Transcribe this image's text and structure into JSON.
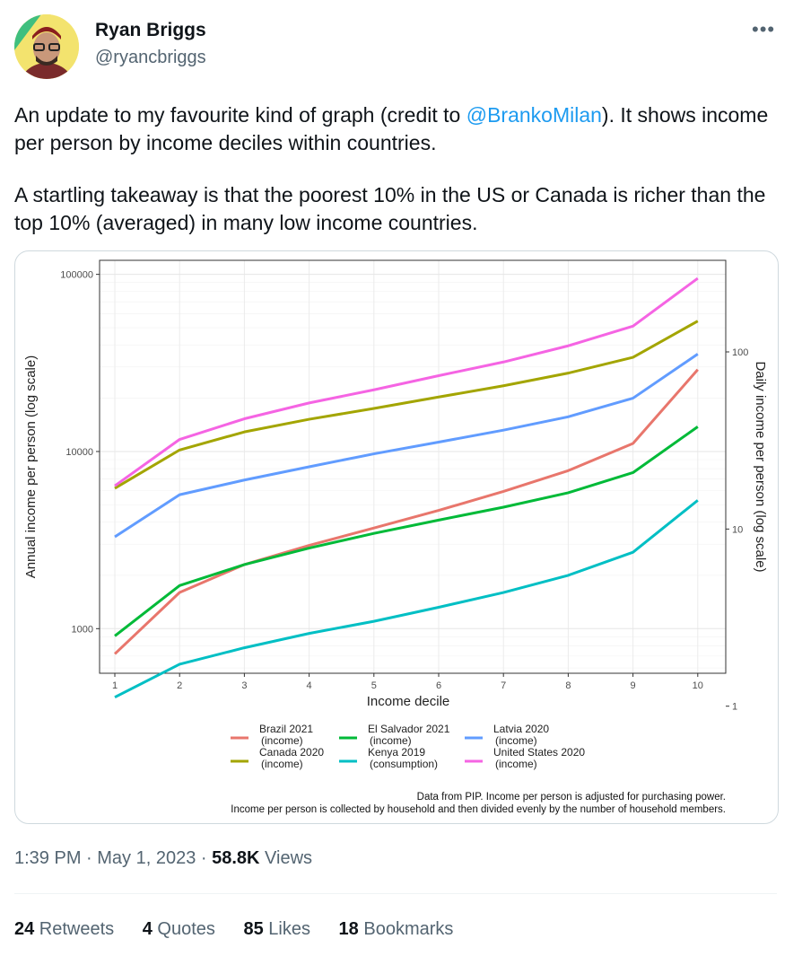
{
  "author": {
    "name": "Ryan Briggs",
    "handle": "@ryancbriggs"
  },
  "tweet": {
    "text_before_mention": "An update to my favourite kind of graph (credit to ",
    "mention": "@BrankoMilan",
    "text_after_mention": "). It shows income per person by income deciles within countries.",
    "paragraph2": "A startling takeaway is that the poorest 10% in the US or Canada is richer than the top 10% (averaged) in many low income countries."
  },
  "meta": {
    "time": "1:39 PM",
    "separator": " · ",
    "date": "May 1, 2023",
    "views_count": "58.8K",
    "views_label": " Views"
  },
  "stats": {
    "retweets": {
      "count": "24",
      "label": " Retweets"
    },
    "quotes": {
      "count": "4",
      "label": " Quotes"
    },
    "likes": {
      "count": "85",
      "label": " Likes"
    },
    "bookmarks": {
      "count": "18",
      "label": " Bookmarks"
    }
  },
  "colors": {
    "accent": "#1d9bf0",
    "secondary_text": "#536471"
  },
  "icons": {
    "more": "more-horizontal-icon"
  },
  "chart_data": {
    "type": "line",
    "xlabel": "Income decile",
    "ylabel": "Annual income per person (log scale)",
    "y2label": "Daily income per person (log scale)",
    "x": [
      1,
      2,
      3,
      4,
      5,
      6,
      7,
      8,
      9,
      10
    ],
    "x_ticks": [
      "1",
      "2",
      "3",
      "4",
      "5",
      "6",
      "7",
      "8",
      "9",
      "10"
    ],
    "y_scale": "log",
    "ylim": [
      560,
      120000
    ],
    "y_ticks": [
      {
        "value": 1000,
        "label": "1000"
      },
      {
        "value": 10000,
        "label": "10000"
      },
      {
        "value": 100000,
        "label": "100000"
      }
    ],
    "y2_ticks": [
      {
        "value": 1,
        "label": "1"
      },
      {
        "value": 10,
        "label": "10"
      },
      {
        "value": 100,
        "label": "100"
      }
    ],
    "grid": true,
    "legend_position": "bottom",
    "series": [
      {
        "name": "Brazil 2021",
        "sub": "(income)",
        "color": "#e8766c",
        "values": [
          720,
          1600,
          2300,
          2950,
          3700,
          4650,
          5950,
          7800,
          11100,
          29000
        ]
      },
      {
        "name": "Canada 2020",
        "sub": "(income)",
        "color": "#a3a500",
        "values": [
          6200,
          10200,
          12900,
          15200,
          17500,
          20300,
          23500,
          27700,
          34000,
          54500
        ]
      },
      {
        "name": "El Salvador 2021",
        "sub": "(income)",
        "color": "#00ba38",
        "values": [
          910,
          1750,
          2300,
          2850,
          3450,
          4100,
          4850,
          5850,
          7600,
          13800
        ]
      },
      {
        "name": "Kenya 2019",
        "sub": "(consumption)",
        "color": "#00bfc4",
        "values": [
          410,
          630,
          780,
          940,
          1100,
          1320,
          1600,
          2000,
          2700,
          5300
        ]
      },
      {
        "name": "Latvia 2020",
        "sub": "(income)",
        "color": "#619cff",
        "values": [
          3300,
          5700,
          6900,
          8200,
          9700,
          11300,
          13200,
          15700,
          20000,
          35500
        ]
      },
      {
        "name": "United States 2020",
        "sub": "(income)",
        "color": "#f564e3",
        "values": [
          6400,
          11700,
          15300,
          18800,
          22300,
          26800,
          32000,
          39500,
          51000,
          95000
        ]
      }
    ],
    "footnote_line1": "Data from PIP. Income per person is adjusted for purchasing power.",
    "footnote_line2": "Income per person is collected by household and then divided evenly by the number of household members."
  }
}
